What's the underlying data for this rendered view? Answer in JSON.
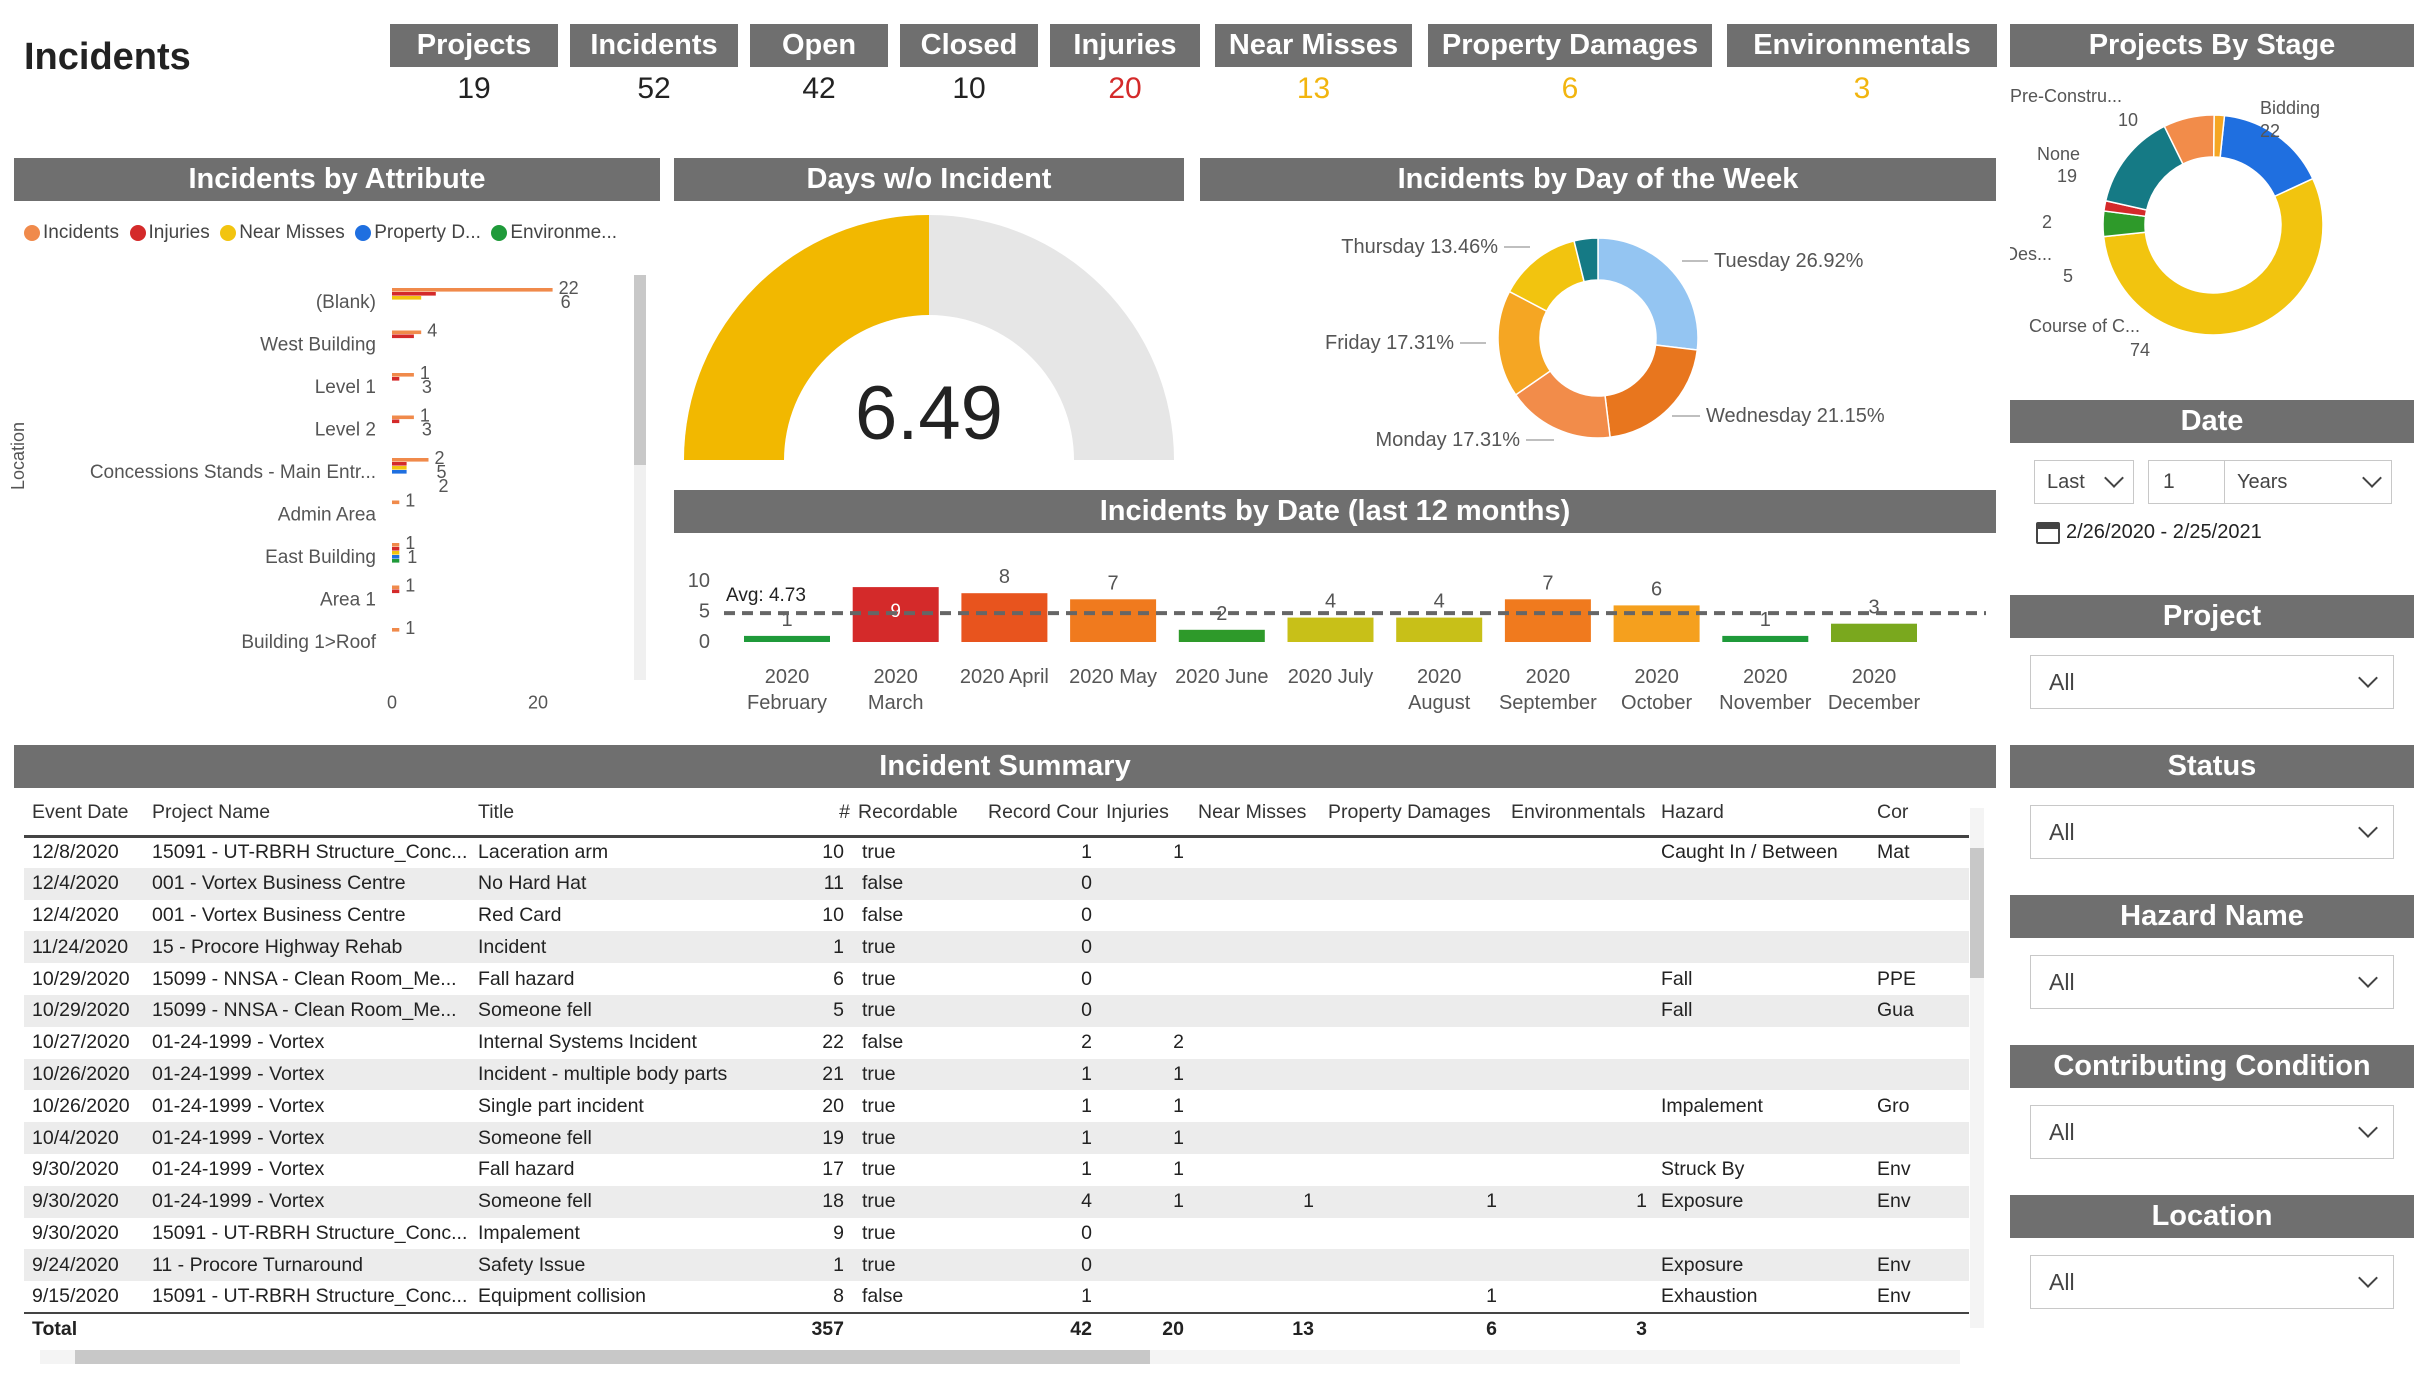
{
  "page_title": "Incidents",
  "kpis": [
    {
      "label": "Projects",
      "value": "19",
      "color": "#222222"
    },
    {
      "label": "Incidents",
      "value": "52",
      "color": "#222222"
    },
    {
      "label": "Open",
      "value": "42",
      "color": "#222222"
    },
    {
      "label": "Closed",
      "value": "10",
      "color": "#222222"
    },
    {
      "label": "Injuries",
      "value": "20",
      "color": "#d42a2a"
    },
    {
      "label": "Near Misses",
      "value": "13",
      "color": "#f2b50f"
    },
    {
      "label": "Property Damages",
      "value": "6",
      "color": "#f2b50f"
    },
    {
      "label": "Environmentals",
      "value": "3",
      "color": "#f2b50f"
    }
  ],
  "attr_chart": {
    "header": "Incidents by Attribute",
    "legend": [
      "Incidents",
      "Injuries",
      "Near Misses",
      "Property D...",
      "Environme..."
    ],
    "legend_colors": [
      "#f08a4b",
      "#d42a2a",
      "#f2c40f",
      "#1f6fe0",
      "#1f9a3a"
    ],
    "y_axis_label": "Location",
    "x_ticks": [
      "0",
      "20"
    ],
    "rows": [
      {
        "label": "(Blank)",
        "values": [
          22,
          6,
          4,
          0,
          0
        ],
        "annotations": [
          "22",
          "6"
        ]
      },
      {
        "label": "West Building",
        "values": [
          4,
          3,
          0,
          0,
          0
        ],
        "annotations": [
          "4"
        ]
      },
      {
        "label": "Level 1",
        "values": [
          3,
          1,
          0,
          0,
          0
        ],
        "annotations": [
          "1",
          "3"
        ]
      },
      {
        "label": "Level 2",
        "values": [
          3,
          1,
          0,
          0,
          0
        ],
        "annotations": [
          "1",
          "3"
        ]
      },
      {
        "label": "Concessions Stands - Main Entr...",
        "values": [
          5,
          2,
          2,
          2,
          0
        ],
        "annotations": [
          "2",
          "5",
          "2"
        ]
      },
      {
        "label": "Admin Area",
        "values": [
          1,
          0,
          0,
          0,
          0
        ],
        "annotations": [
          "1"
        ]
      },
      {
        "label": "East Building",
        "values": [
          1,
          1,
          1,
          1,
          1
        ],
        "annotations": [
          "1",
          "1"
        ]
      },
      {
        "label": "Area 1",
        "values": [
          1,
          1,
          0,
          0,
          0
        ],
        "annotations": [
          "1"
        ]
      },
      {
        "label": "Building 1>Roof",
        "values": [
          1,
          0,
          0,
          0,
          0
        ],
        "annotations": [
          "1"
        ]
      }
    ]
  },
  "gauge": {
    "header": "Days w/o Incident",
    "value_text": "6.49",
    "fraction": 0.5,
    "fill_color": "#f2b800",
    "track_color": "#e6e6e6"
  },
  "dow_chart": {
    "header": "Incidents by Day of the Week",
    "slices": [
      {
        "label": "Tuesday 26.92%",
        "value": 26.92,
        "color": "#94c5f2"
      },
      {
        "label": "Wednesday 21.15%",
        "value": 21.15,
        "color": "#e8761e"
      },
      {
        "label": "Monday 17.31%",
        "value": 17.31,
        "color": "#f28c4a"
      },
      {
        "label": "Friday 17.31%",
        "value": 17.31,
        "color": "#f5a623"
      },
      {
        "label": "Thursday 13.46%",
        "value": 13.46,
        "color": "#f2c40f"
      },
      {
        "label": "",
        "value": 3.85,
        "color": "#157a85"
      }
    ]
  },
  "date_chart": {
    "header": "Incidents by Date (last 12 months)",
    "y_ticks": [
      "10",
      "5",
      "0"
    ],
    "avg_label": "Avg: 4.73",
    "avg": 4.73,
    "categories": [
      [
        "2020",
        "February"
      ],
      [
        "2020",
        "March"
      ],
      [
        "2020 April",
        ""
      ],
      [
        "2020 May",
        ""
      ],
      [
        "2020 June",
        ""
      ],
      [
        "2020 July",
        ""
      ],
      [
        "2020",
        "August"
      ],
      [
        "2020",
        "September"
      ],
      [
        "2020",
        "October"
      ],
      [
        "2020",
        "November"
      ],
      [
        "2020",
        "December"
      ]
    ],
    "values": [
      1,
      9,
      8,
      7,
      2,
      4,
      4,
      7,
      6,
      1,
      3
    ],
    "colors": [
      "#1f9a3a",
      "#d42a2a",
      "#e8541e",
      "#f07a1e",
      "#2e9a2a",
      "#c8c018",
      "#c8c018",
      "#f07a1e",
      "#f5a01e",
      "#1f9a3a",
      "#7aa81e"
    ]
  },
  "summary": {
    "header": "Incident Summary",
    "columns": [
      "Event Date",
      "Project Name",
      "Title",
      "#",
      "Recordable",
      "Record Count",
      "Injuries",
      "Near Misses",
      "Property Damages",
      "Environmentals",
      "Hazard",
      "Cor"
    ],
    "rows": [
      [
        "12/8/2020",
        "15091 - UT-RBRH Structure_Conc...",
        "Laceration arm",
        "10",
        "true",
        "1",
        "1",
        "",
        "",
        "",
        "Caught In / Between",
        "Mat"
      ],
      [
        "12/4/2020",
        "001 - Vortex Business Centre",
        "No Hard Hat",
        "11",
        "false",
        "0",
        "",
        "",
        "",
        "",
        "",
        ""
      ],
      [
        "12/4/2020",
        "001 - Vortex Business Centre",
        "Red Card",
        "10",
        "false",
        "0",
        "",
        "",
        "",
        "",
        "",
        ""
      ],
      [
        "11/24/2020",
        "15 - Procore Highway Rehab",
        "Incident",
        "1",
        "true",
        "0",
        "",
        "",
        "",
        "",
        "",
        ""
      ],
      [
        "10/29/2020",
        "15099 - NNSA - Clean Room_Me...",
        "Fall hazard",
        "6",
        "true",
        "0",
        "",
        "",
        "",
        "",
        "Fall",
        "PPE"
      ],
      [
        "10/29/2020",
        "15099 - NNSA - Clean Room_Me...",
        "Someone fell",
        "5",
        "true",
        "0",
        "",
        "",
        "",
        "",
        "Fall",
        "Gua"
      ],
      [
        "10/27/2020",
        "01-24-1999 - Vortex",
        "Internal Systems Incident",
        "22",
        "false",
        "2",
        "2",
        "",
        "",
        "",
        "",
        ""
      ],
      [
        "10/26/2020",
        "01-24-1999 - Vortex",
        "Incident - multiple body parts",
        "21",
        "true",
        "1",
        "1",
        "",
        "",
        "",
        "",
        ""
      ],
      [
        "10/26/2020",
        "01-24-1999 - Vortex",
        "Single part incident",
        "20",
        "true",
        "1",
        "1",
        "",
        "",
        "",
        "Impalement",
        "Gro"
      ],
      [
        "10/4/2020",
        "01-24-1999 - Vortex",
        "Someone fell",
        "19",
        "true",
        "1",
        "1",
        "",
        "",
        "",
        "",
        ""
      ],
      [
        "9/30/2020",
        "01-24-1999 - Vortex",
        "Fall hazard",
        "17",
        "true",
        "1",
        "1",
        "",
        "",
        "",
        "Struck By",
        "Env"
      ],
      [
        "9/30/2020",
        "01-24-1999 - Vortex",
        "Someone fell",
        "18",
        "true",
        "4",
        "1",
        "1",
        "1",
        "1",
        "Exposure",
        "Env"
      ],
      [
        "9/30/2020",
        "15091 - UT-RBRH Structure_Conc...",
        "Impalement",
        "9",
        "true",
        "0",
        "",
        "",
        "",
        "",
        "",
        ""
      ],
      [
        "9/24/2020",
        "11 - Procore Turnaround",
        "Safety Issue",
        "1",
        "true",
        "0",
        "",
        "",
        "",
        "",
        "Exposure",
        "Env"
      ],
      [
        "9/15/2020",
        "15091 - UT-RBRH Structure_Conc...",
        "Equipment collision",
        "8",
        "false",
        "1",
        "",
        "",
        "1",
        "",
        "Exhaustion",
        "Env"
      ]
    ],
    "total": [
      "Total",
      "",
      "",
      "357",
      "",
      "42",
      "20",
      "13",
      "6",
      "3",
      "",
      ""
    ]
  },
  "stage_chart": {
    "header": "Projects By Stage",
    "slices": [
      {
        "label": "Bidding",
        "value": 22,
        "value_text": "22",
        "color": "#1f6fe0"
      },
      {
        "label": "Course of C...",
        "value": 74,
        "value_text": "74",
        "color": "#f2c40f"
      },
      {
        "label": "Des...",
        "value": 5,
        "value_text": "5",
        "color": "#2e9a2a"
      },
      {
        "label": "",
        "value": 2,
        "value_text": "2",
        "color": "#d42a2a"
      },
      {
        "label": "None",
        "value": 19,
        "value_text": "19",
        "color": "#157a85"
      },
      {
        "label": "Pre-Constru...",
        "value": 10,
        "value_text": "10",
        "color": "#f28c4a"
      },
      {
        "label": "",
        "value": 2,
        "value_text": "",
        "color": "#f5a623"
      }
    ]
  },
  "slicers": {
    "date": {
      "header": "Date",
      "mode": "Last",
      "count": "1",
      "unit": "Years",
      "range": "2/26/2020 - 2/25/2021"
    },
    "project": {
      "header": "Project",
      "value": "All"
    },
    "status": {
      "header": "Status",
      "value": "All"
    },
    "hazard": {
      "header": "Hazard Name",
      "value": "All"
    },
    "condition": {
      "header": "Contributing Condition",
      "value": "All"
    },
    "location": {
      "header": "Location",
      "value": "All"
    }
  }
}
